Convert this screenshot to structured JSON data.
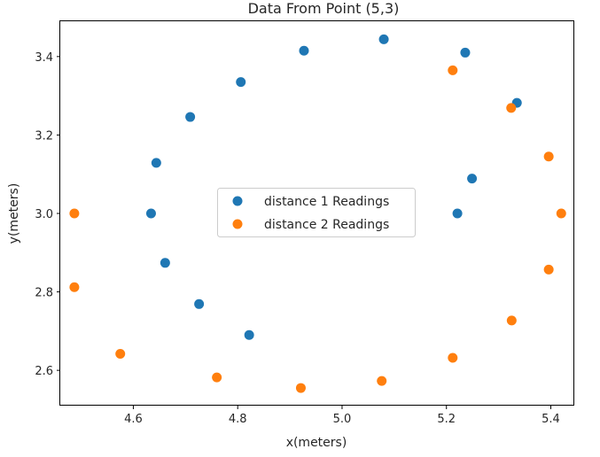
{
  "chart_data": {
    "type": "scatter",
    "title": "Data From Point (5,3)",
    "xlabel": "x(meters)",
    "ylabel": "y(meters)",
    "xlim": [
      4.46,
      5.445
    ],
    "ylim": [
      2.51,
      3.49
    ],
    "xticks": [
      4.6,
      4.8,
      5.0,
      5.2,
      5.4
    ],
    "xtick_labels": [
      "4.6",
      "4.8",
      "5.0",
      "5.2",
      "5.4"
    ],
    "yticks": [
      2.6,
      2.8,
      3.0,
      3.2,
      3.4
    ],
    "ytick_labels": [
      "2.6",
      "2.8",
      "3.0",
      "3.2",
      "3.4"
    ],
    "grid": false,
    "legend_position": "center",
    "series": [
      {
        "name": "distance 1 Readings",
        "color": "#1f77b4",
        "points": [
          {
            "x": 5.221,
            "y": 3.0
          },
          {
            "x": 5.249,
            "y": 3.089
          },
          {
            "x": 5.335,
            "y": 3.282
          },
          {
            "x": 5.236,
            "y": 3.41
          },
          {
            "x": 5.08,
            "y": 3.444
          },
          {
            "x": 4.927,
            "y": 3.415
          },
          {
            "x": 4.806,
            "y": 3.335
          },
          {
            "x": 4.709,
            "y": 3.246
          },
          {
            "x": 4.644,
            "y": 3.129
          },
          {
            "x": 4.634,
            "y": 3.0
          },
          {
            "x": 4.661,
            "y": 2.874
          },
          {
            "x": 4.726,
            "y": 2.769
          },
          {
            "x": 4.822,
            "y": 2.69
          }
        ]
      },
      {
        "name": "distance 2 Readings",
        "color": "#ff7f0e",
        "points": [
          {
            "x": 5.42,
            "y": 3.0
          },
          {
            "x": 5.396,
            "y": 2.857
          },
          {
            "x": 5.325,
            "y": 2.727
          },
          {
            "x": 5.212,
            "y": 2.632
          },
          {
            "x": 5.076,
            "y": 2.573
          },
          {
            "x": 4.921,
            "y": 2.555
          },
          {
            "x": 4.76,
            "y": 2.582
          },
          {
            "x": 4.575,
            "y": 2.642
          },
          {
            "x": 4.487,
            "y": 2.812
          },
          {
            "x": 4.487,
            "y": 3.0
          },
          {
            "x": 5.396,
            "y": 3.145
          },
          {
            "x": 5.324,
            "y": 3.269
          },
          {
            "x": 5.212,
            "y": 3.365
          }
        ]
      }
    ]
  }
}
